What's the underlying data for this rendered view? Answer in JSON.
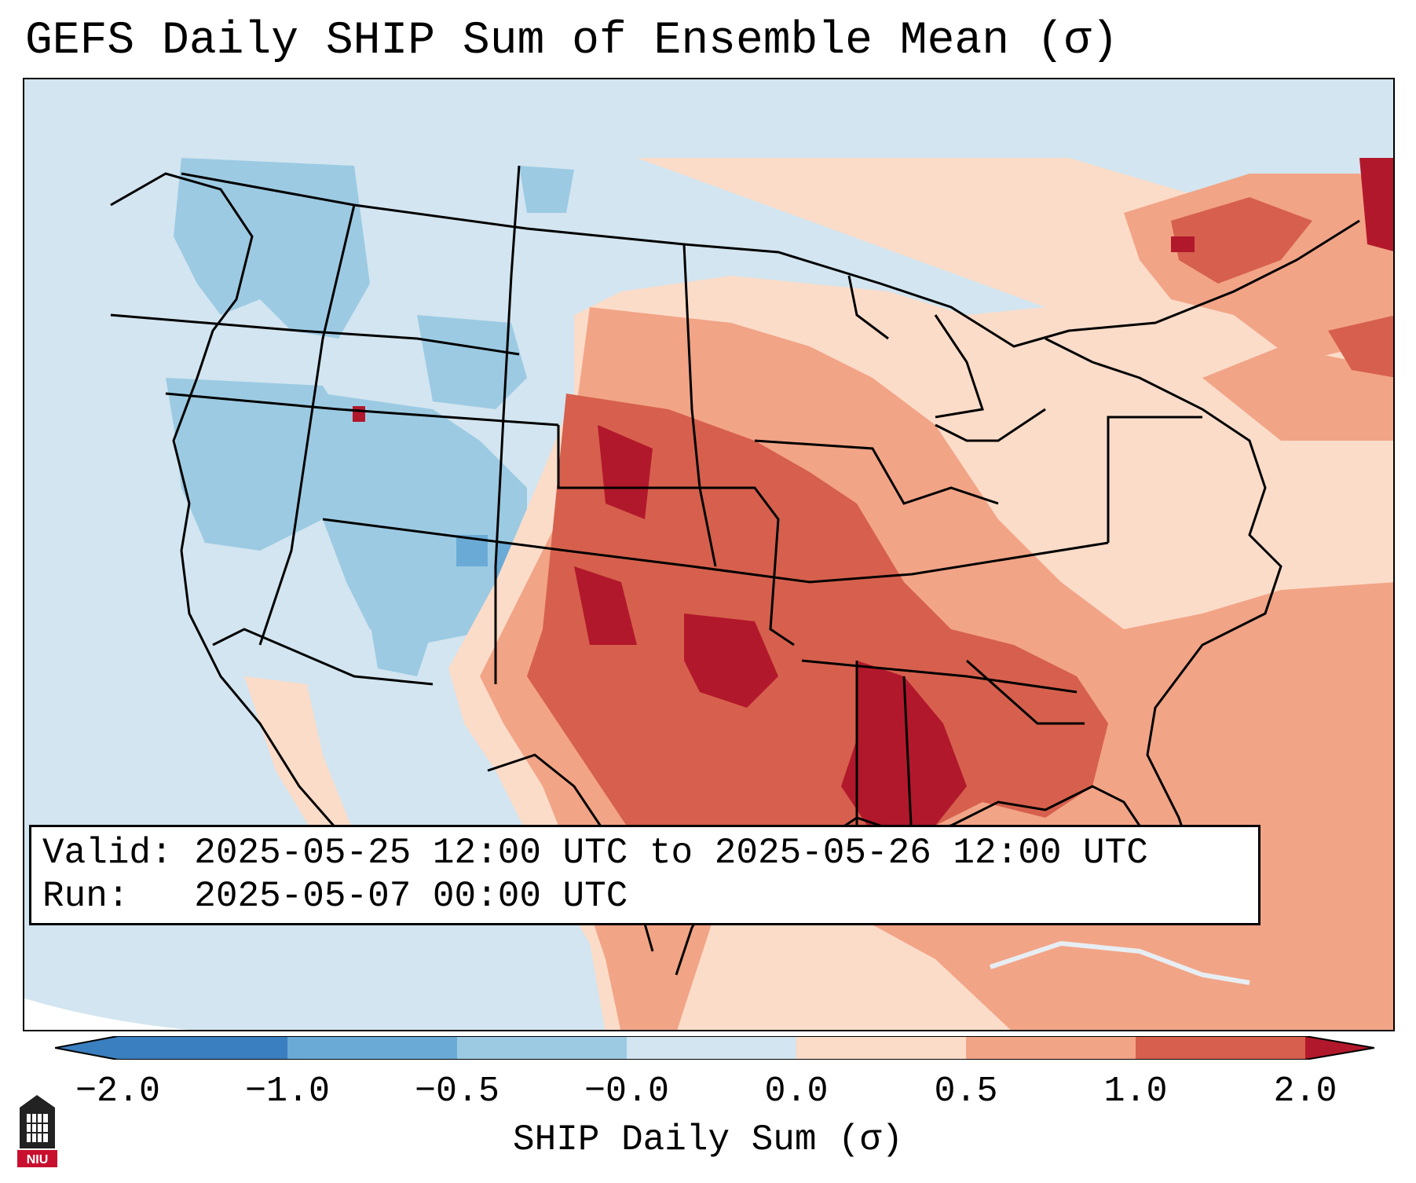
{
  "title": "GEFS Daily SHIP Sum of Ensemble Mean (σ)",
  "info": {
    "valid_label": "Valid:",
    "valid_value": "2025-05-25 12:00 UTC to 2025-05-26 12:00 UTC",
    "run_label": "Run:",
    "run_value": "2025-05-07 00:00 UTC"
  },
  "colorbar": {
    "label": "SHIP Daily Sum (σ)",
    "ticks": [
      "−2.0",
      "−1.0",
      "−0.5",
      "−0.0",
      "0.0",
      "0.5",
      "1.0",
      "2.0"
    ],
    "bin_colors": [
      "#3a7fbf",
      "#6aaad6",
      "#9ccae3",
      "#d2e5f0",
      "#fbdcc9",
      "#f2a486",
      "#d6604d",
      "#b2182b"
    ],
    "extend": "both"
  },
  "map": {
    "projection": "lambert-conformal",
    "region": "CONUS",
    "background_color": "#d2e5f0",
    "ocean_outside_color": "#ffffff"
  },
  "logo": {
    "text": "NIU",
    "icon": "niu-tower-logo"
  }
}
